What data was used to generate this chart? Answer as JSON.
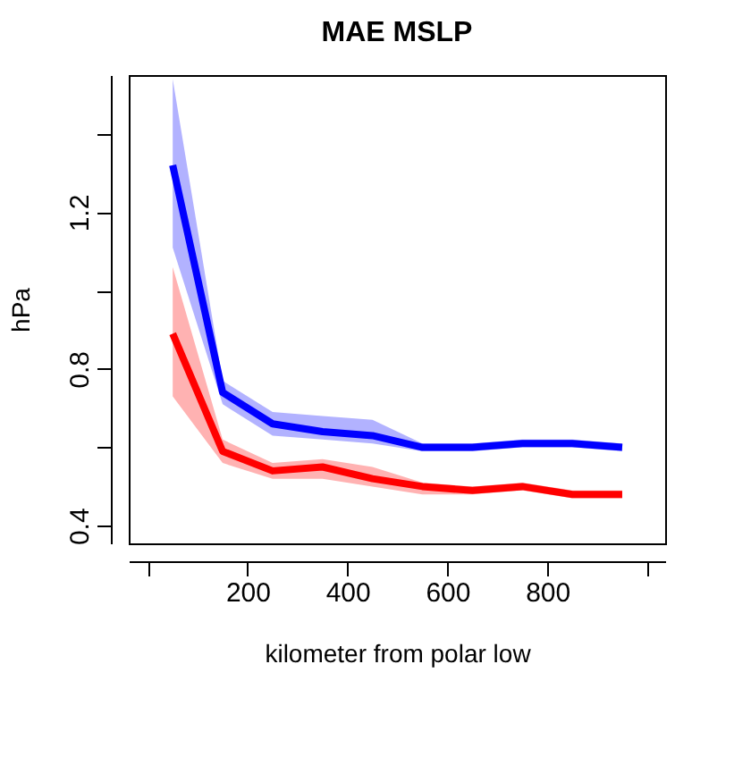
{
  "chart_data": {
    "type": "line",
    "title": "MAE MSLP",
    "xlabel": "kilometer from polar low",
    "ylabel": "hPa",
    "x": [
      50,
      150,
      250,
      350,
      450,
      550,
      650,
      750,
      850,
      950
    ],
    "series": [
      {
        "color": "#0000ff",
        "values": [
          1.32,
          0.74,
          0.66,
          0.64,
          0.63,
          0.6,
          0.6,
          0.61,
          0.61,
          0.6
        ],
        "lower": [
          1.11,
          0.71,
          0.63,
          0.62,
          0.61,
          0.59,
          0.59,
          0.6,
          0.6,
          0.59
        ],
        "upper": [
          1.54,
          0.77,
          0.69,
          0.68,
          0.67,
          0.61,
          0.61,
          0.62,
          0.62,
          0.61
        ]
      },
      {
        "color": "#ff0000",
        "values": [
          0.89,
          0.59,
          0.54,
          0.55,
          0.52,
          0.5,
          0.49,
          0.5,
          0.48,
          0.48
        ],
        "lower": [
          0.73,
          0.56,
          0.52,
          0.52,
          0.5,
          0.48,
          0.48,
          0.49,
          0.47,
          0.47
        ],
        "upper": [
          1.06,
          0.62,
          0.56,
          0.57,
          0.55,
          0.51,
          0.5,
          0.51,
          0.49,
          0.49
        ]
      }
    ],
    "xlim": [
      -38,
      1036
    ],
    "ylim": [
      0.355,
      1.55
    ],
    "xticks": [
      {
        "value": 0,
        "label": null
      },
      200,
      400,
      600,
      800,
      {
        "value": 1000,
        "label": null
      }
    ],
    "yticks": [
      0.4,
      {
        "value": 0.6,
        "label": null
      },
      0.8,
      {
        "value": 1.0,
        "label": null
      },
      1.2,
      {
        "value": 1.4,
        "label": null
      }
    ],
    "grid": false,
    "marker": "none",
    "line_style": "solid"
  }
}
